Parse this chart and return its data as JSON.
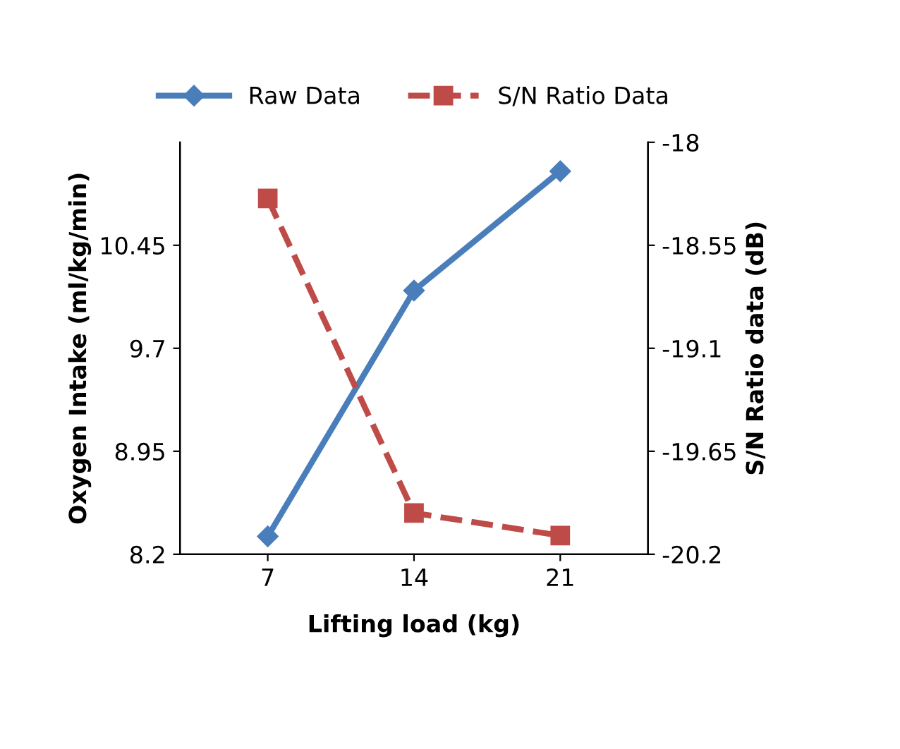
{
  "chart_data": {
    "type": "line",
    "xlabel": "Lifting load (kg)",
    "ylabel": "Oxygen Intake (ml/kg/min)",
    "y2label": "S/N Ratio data (dB)",
    "categories": [
      "7",
      "14",
      "21"
    ],
    "series": [
      {
        "name": "Raw Data",
        "color": "#4a7ebb",
        "values": [
          8.33,
          10.12,
          10.99
        ],
        "marker": "diamond",
        "line_style": "solid"
      },
      {
        "name": "S/N Ratio Data",
        "color": "#be4b48",
        "values": [
          -18.3,
          -19.98,
          -20.1
        ],
        "axis": "y2",
        "marker": "square",
        "line_style": "dashed"
      }
    ],
    "ylim": [
      8.2,
      11.2
    ],
    "yticks": [
      8.2,
      8.95,
      9.7,
      10.45
    ],
    "y2lim": [
      -20.2,
      -18
    ],
    "y2ticks": [
      -20.2,
      -19.65,
      -19.1,
      -18.55,
      -18
    ],
    "grid": false,
    "legend": "top"
  }
}
